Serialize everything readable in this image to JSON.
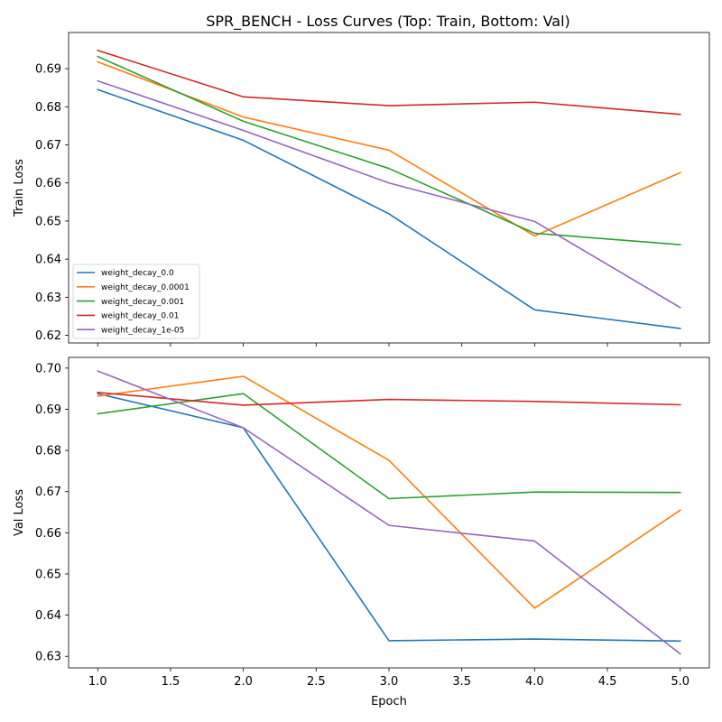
{
  "chart_data": [
    {
      "type": "line",
      "title": "SPR_BENCH - Loss Curves (Top: Train, Bottom: Val)",
      "xlabel": "",
      "ylabel": "Train Loss",
      "x": [
        1,
        2,
        3,
        4,
        5
      ],
      "xlim": [
        0.8,
        5.2
      ],
      "ylim": [
        0.618,
        0.6995
      ],
      "xticks": [
        "1.0",
        "1.5",
        "2.0",
        "2.5",
        "3.0",
        "3.5",
        "4.0",
        "4.5",
        "5.0"
      ],
      "yticks": [
        "0.62",
        "0.63",
        "0.64",
        "0.65",
        "0.66",
        "0.67",
        "0.68",
        "0.69"
      ],
      "legend_position": "lower-left",
      "series": [
        {
          "name": "weight_decay_0.0",
          "color": "#1f77b4",
          "values": [
            0.6845,
            0.6712,
            0.6519,
            0.6267,
            0.6218
          ]
        },
        {
          "name": "weight_decay_0.0001",
          "color": "#ff7f0e",
          "values": [
            0.6918,
            0.6773,
            0.6686,
            0.6461,
            0.6627
          ]
        },
        {
          "name": "weight_decay_0.001",
          "color": "#2ca02c",
          "values": [
            0.6932,
            0.6762,
            0.6638,
            0.6468,
            0.6438
          ]
        },
        {
          "name": "weight_decay_0.01",
          "color": "#d62728",
          "values": [
            0.6948,
            0.6826,
            0.6803,
            0.6812,
            0.678
          ]
        },
        {
          "name": "weight_decay_1e-05",
          "color": "#9467bd",
          "values": [
            0.6868,
            0.6738,
            0.66,
            0.6499,
            0.6273
          ]
        }
      ]
    },
    {
      "type": "line",
      "title": "",
      "xlabel": "Epoch",
      "ylabel": "Val Loss",
      "x": [
        1,
        2,
        3,
        4,
        5
      ],
      "xlim": [
        0.8,
        5.2
      ],
      "ylim": [
        0.6272,
        0.7026
      ],
      "xticks": [
        "1.0",
        "1.5",
        "2.0",
        "2.5",
        "3.0",
        "3.5",
        "4.0",
        "4.5",
        "5.0"
      ],
      "yticks": [
        "0.63",
        "0.64",
        "0.65",
        "0.66",
        "0.67",
        "0.68",
        "0.69",
        "0.70"
      ],
      "series": [
        {
          "name": "weight_decay_0.0",
          "color": "#1f77b4",
          "values": [
            0.6938,
            0.6855,
            0.6338,
            0.6342,
            0.6337
          ]
        },
        {
          "name": "weight_decay_0.0001",
          "color": "#ff7f0e",
          "values": [
            0.6932,
            0.698,
            0.6776,
            0.6417,
            0.6655
          ]
        },
        {
          "name": "weight_decay_0.001",
          "color": "#2ca02c",
          "values": [
            0.6889,
            0.6938,
            0.6683,
            0.6699,
            0.6698
          ]
        },
        {
          "name": "weight_decay_0.01",
          "color": "#d62728",
          "values": [
            0.6941,
            0.691,
            0.6924,
            0.6919,
            0.6911
          ]
        },
        {
          "name": "weight_decay_1e-05",
          "color": "#9467bd",
          "values": [
            0.6993,
            0.6855,
            0.6618,
            0.658,
            0.6306
          ]
        }
      ]
    }
  ]
}
